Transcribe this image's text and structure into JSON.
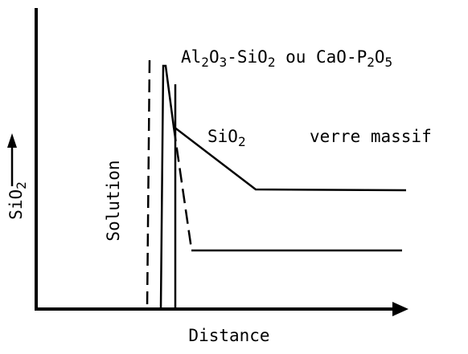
{
  "labels": {
    "top": "Al2O3-SiO2 ou CaO-P2O5",
    "middle": "SiO2",
    "right": "verre massif",
    "solution": "Solution",
    "y_axis": "SiO2",
    "x_axis": "Distance"
  }
}
